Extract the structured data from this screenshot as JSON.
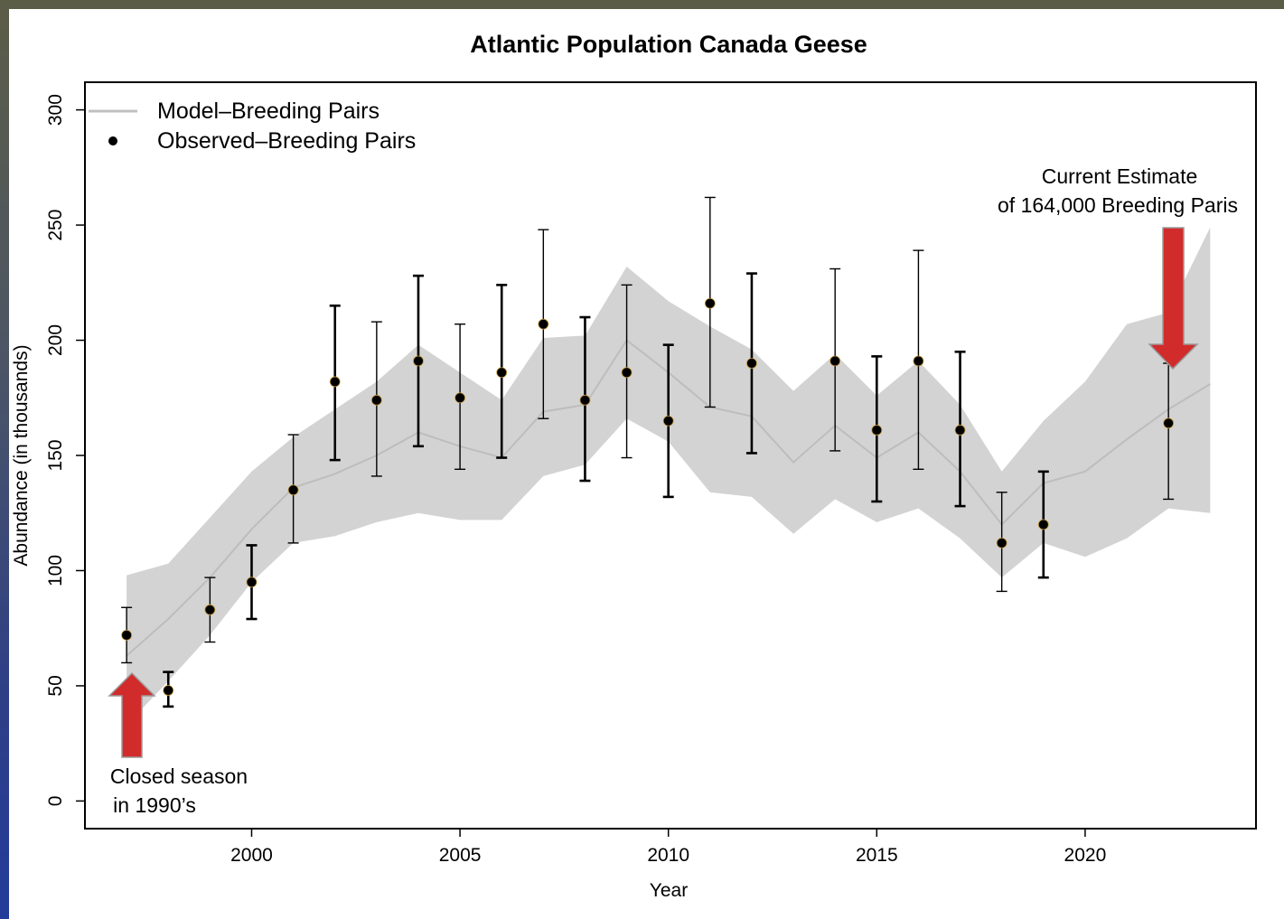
{
  "chart_data": {
    "type": "line",
    "title": "Atlantic Population Canada Geese",
    "xlabel": "Year",
    "ylabel": "Abundance (in thousands)",
    "xlim": [
      1996,
      2024.1
    ],
    "ylim": [
      -12,
      312
    ],
    "x_ticks": [
      2000,
      2005,
      2010,
      2015,
      2020
    ],
    "y_ticks": [
      0,
      50,
      100,
      150,
      200,
      250,
      300
    ],
    "legend": {
      "placement": "top-left",
      "entries": [
        {
          "label": "Model–Breeding Pairs",
          "symbol": "line",
          "color": "#c0c0c0"
        },
        {
          "label": "Observed–Breeding Pairs",
          "symbol": "point",
          "color": "#000000"
        }
      ]
    },
    "series": [
      {
        "name": "Model–Breeding Pairs",
        "kind": "line_with_band",
        "color": "#c8c8c8",
        "band_color": "#d3d3d3",
        "x": [
          1997,
          1998,
          1999,
          2000,
          2001,
          2002,
          2003,
          2004,
          2005,
          2006,
          2007,
          2008,
          2009,
          2010,
          2011,
          2012,
          2013,
          2014,
          2015,
          2016,
          2017,
          2018,
          2019,
          2020,
          2021,
          2022,
          2023
        ],
        "y": [
          63,
          79,
          97,
          118,
          136,
          142,
          150,
          160,
          154,
          149,
          169,
          172,
          200,
          186,
          171,
          167,
          147,
          163,
          149,
          160,
          143,
          120,
          138,
          143,
          157,
          170,
          181
        ],
        "lower": [
          33,
          52,
          72,
          95,
          112,
          115,
          121,
          125,
          122,
          122,
          141,
          146,
          166,
          156,
          134,
          132,
          116,
          131,
          121,
          127,
          114,
          97,
          112,
          106,
          114,
          127,
          125
        ],
        "upper": [
          98,
          103,
          123,
          143,
          158,
          170,
          182,
          198,
          186,
          174,
          201,
          202,
          232,
          217,
          206,
          196,
          178,
          194,
          176,
          191,
          172,
          143,
          165,
          182,
          207,
          212,
          249
        ]
      },
      {
        "name": "Observed–Breeding Pairs",
        "kind": "points_with_error_bars",
        "color": "#000000",
        "x": [
          1997,
          1998,
          1999,
          2000,
          2001,
          2002,
          2003,
          2004,
          2005,
          2006,
          2007,
          2008,
          2009,
          2010,
          2011,
          2012,
          2014,
          2015,
          2016,
          2017,
          2018,
          2019,
          2022
        ],
        "y": [
          72,
          48,
          83,
          95,
          135,
          182,
          174,
          191,
          175,
          186,
          207,
          174,
          186,
          165,
          216,
          190,
          191,
          161,
          191,
          161,
          112,
          120,
          164
        ],
        "lower": [
          60,
          41,
          69,
          79,
          112,
          148,
          141,
          154,
          144,
          149,
          166,
          139,
          149,
          132,
          171,
          151,
          152,
          130,
          144,
          128,
          91,
          97,
          131
        ],
        "upper": [
          84,
          56,
          97,
          111,
          159,
          215,
          208,
          228,
          207,
          224,
          248,
          210,
          224,
          198,
          262,
          229,
          231,
          193,
          239,
          195,
          134,
          143,
          190
        ]
      }
    ],
    "annotations": [
      {
        "lines": [
          "Closed season",
          "in 1990’s"
        ],
        "arrow": "up",
        "arrow_color": "#d22b2b",
        "near_x": 1997
      },
      {
        "lines": [
          "Current Estimate",
          "of 164,000 Breeding Paris"
        ],
        "arrow": "down",
        "arrow_color": "#d22b2b",
        "near_x": 2022
      }
    ]
  }
}
